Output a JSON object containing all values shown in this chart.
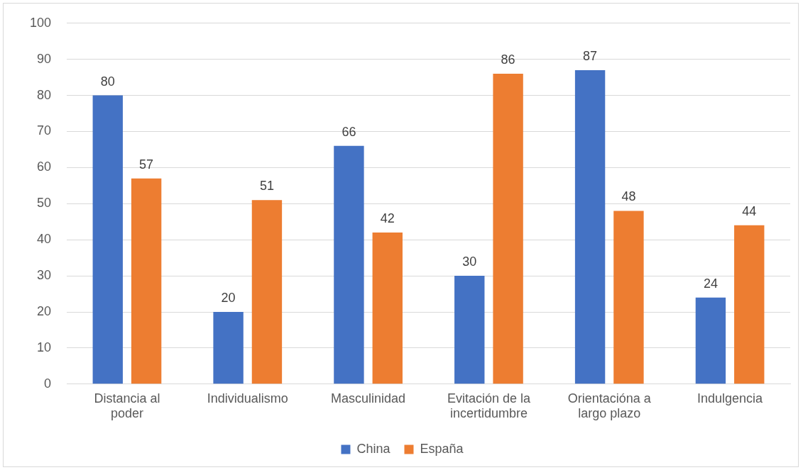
{
  "chart_data": {
    "type": "bar",
    "categories": [
      "Distancia al poder",
      "Individualismo",
      "Masculinidad",
      "Evitación de la incertidumbre",
      "Orientacióna a largo plazo",
      "Indulgencia"
    ],
    "series": [
      {
        "name": "China",
        "color": "#4472c4",
        "values": [
          80,
          20,
          66,
          30,
          87,
          24
        ]
      },
      {
        "name": "España",
        "color": "#ed7d31",
        "values": [
          57,
          51,
          42,
          86,
          48,
          44
        ]
      }
    ],
    "ylim": [
      0,
      100
    ],
    "yticks": [
      0,
      10,
      20,
      30,
      40,
      50,
      60,
      70,
      80,
      90,
      100
    ],
    "grid": "y",
    "legend": "bottom",
    "data_labels": true
  }
}
